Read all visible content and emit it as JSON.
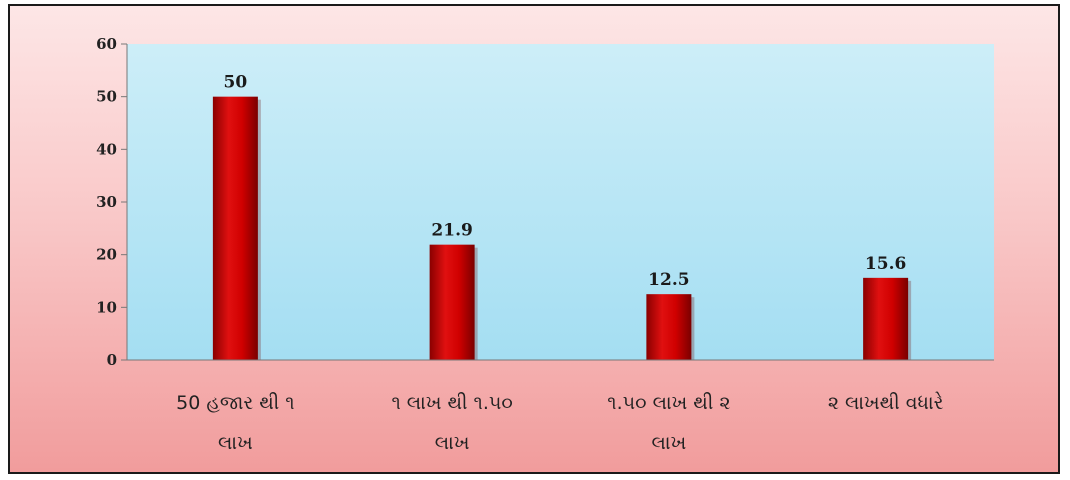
{
  "chart_data": {
    "type": "bar",
    "categories": [
      [
        "50 હજાર થી ૧",
        "લાખ"
      ],
      [
        "૧ લાખ થી ૧.૫૦",
        "લાખ"
      ],
      [
        "૧.૫૦ લાખ થી ૨",
        "લાખ"
      ],
      [
        "૨ લાખથી વધારે"
      ]
    ],
    "values": [
      50,
      21.9,
      12.5,
      15.6
    ],
    "data_labels": [
      "50",
      "21.9",
      "12.5",
      "15.6"
    ],
    "ylim": [
      0,
      60
    ],
    "yticks": [
      "0",
      "10",
      "20",
      "30",
      "40",
      "50",
      "60"
    ],
    "grid": false,
    "colors": {
      "bar": "#c00000",
      "plot_background_top": "#cdeef8",
      "plot_background_bottom": "#a4def2",
      "page_background_top": "#fde6e6",
      "page_background_bottom": "#f19c9c"
    }
  }
}
